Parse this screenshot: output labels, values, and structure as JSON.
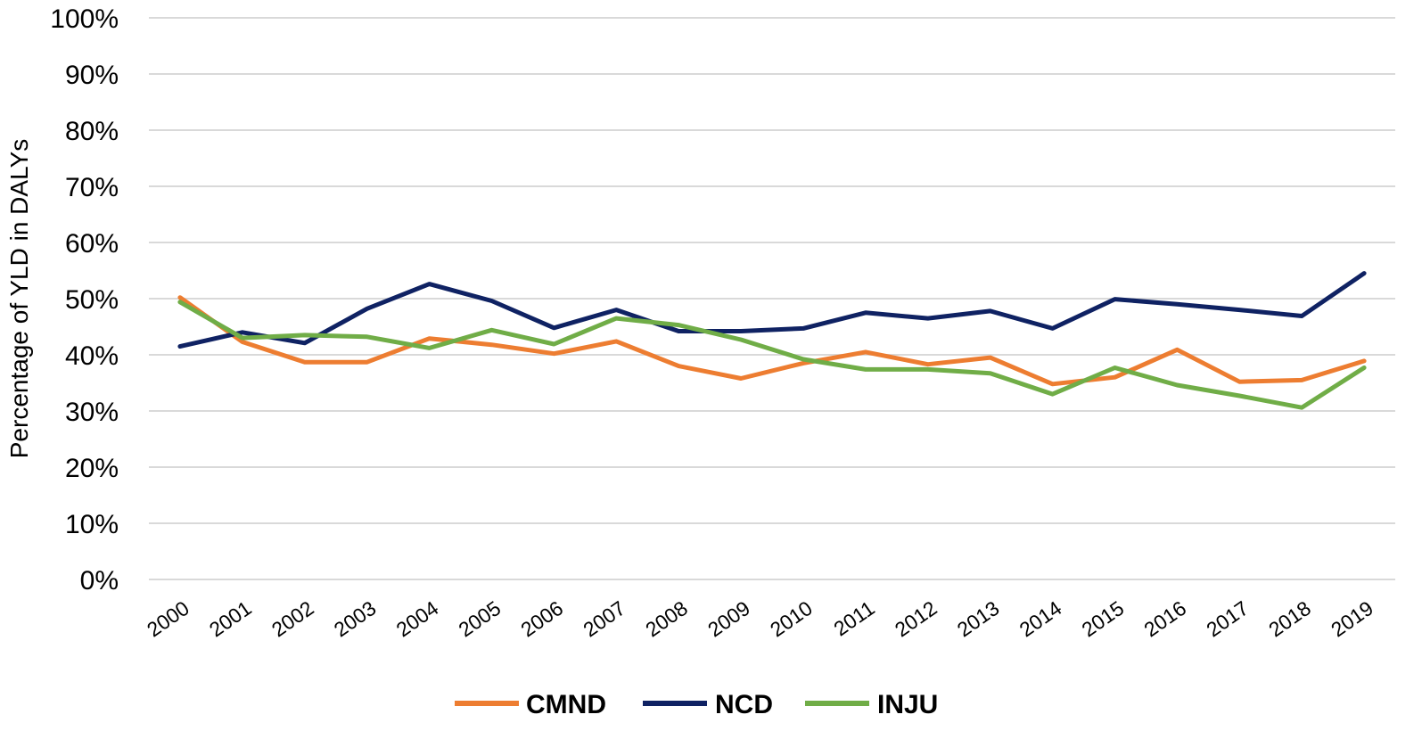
{
  "chart_data": {
    "type": "line",
    "title": "",
    "xlabel": "",
    "ylabel": "Percentage of YLD in DALYs",
    "ylim": [
      0,
      100
    ],
    "yticks": [
      "0%",
      "10%",
      "20%",
      "30%",
      "40%",
      "50%",
      "60%",
      "70%",
      "80%",
      "90%",
      "100%"
    ],
    "categories": [
      "2000",
      "2001",
      "2002",
      "2003",
      "2004",
      "2005",
      "2006",
      "2007",
      "2008",
      "2009",
      "2010",
      "2011",
      "2012",
      "2013",
      "2014",
      "2015",
      "2016",
      "2017",
      "2018",
      "2019"
    ],
    "grid": true,
    "legend_position": "bottom-center",
    "series": [
      {
        "name": "CMND",
        "color": "#ed7d31",
        "values": [
          50.2,
          42.3,
          38.7,
          38.7,
          42.9,
          41.8,
          40.2,
          42.4,
          38.0,
          35.8,
          38.5,
          40.5,
          38.3,
          39.5,
          34.8,
          36.0,
          40.9,
          35.2,
          35.5,
          38.9
        ]
      },
      {
        "name": "NCD",
        "color": "#0f2263",
        "values": [
          41.5,
          44.0,
          42.1,
          48.2,
          52.6,
          49.6,
          44.8,
          48.0,
          44.2,
          44.2,
          44.7,
          47.5,
          46.5,
          47.8,
          44.7,
          49.9,
          49.0,
          48.0,
          46.9,
          54.5
        ]
      },
      {
        "name": "INJU",
        "color": "#70ad47",
        "values": [
          49.4,
          43.0,
          43.5,
          43.2,
          41.2,
          44.4,
          41.9,
          46.5,
          45.3,
          42.7,
          39.2,
          37.4,
          37.4,
          36.7,
          33.0,
          37.7,
          34.6,
          32.7,
          30.6,
          37.7
        ]
      }
    ]
  }
}
